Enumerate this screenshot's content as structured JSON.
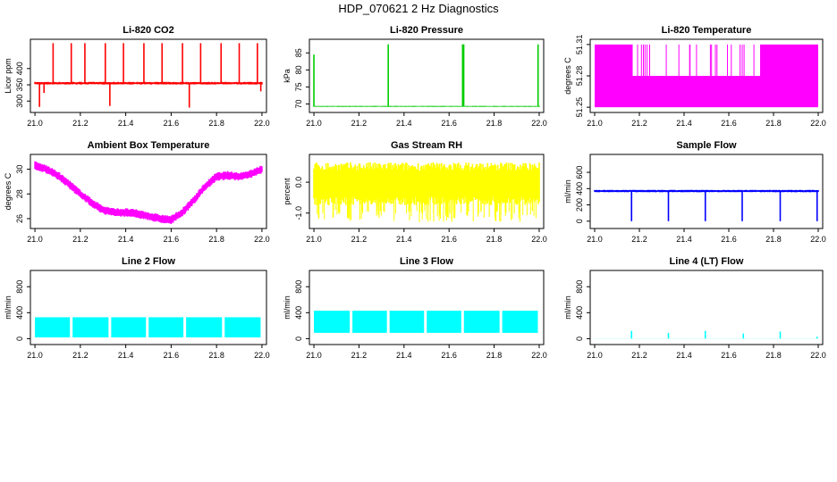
{
  "page": {
    "title": "HDP_070621  2 Hz Diagnostics"
  },
  "chart_data": [
    {
      "type": "line",
      "title": "Li-820 CO2",
      "ylabel": "Licor ppm",
      "xlabel": "",
      "color": "#ff0000",
      "xlim": [
        20.98,
        22.02
      ],
      "ylim": [
        265,
        490
      ],
      "xticks": [
        "21.0",
        "21.2",
        "21.4",
        "21.6",
        "21.8",
        "22.0"
      ],
      "yticks": [
        "300",
        "350",
        "400"
      ],
      "series": [
        {
          "style": "band",
          "x": [
            21.0,
            21.1,
            21.2,
            21.3,
            21.4,
            21.5,
            21.6,
            21.7,
            21.8,
            21.9,
            22.0
          ],
          "center": [
            355,
            355,
            355,
            355,
            355,
            355,
            355,
            355,
            355,
            355,
            355
          ],
          "half_width": [
            4,
            4,
            4,
            4,
            4,
            4,
            4,
            4,
            4,
            4,
            4
          ]
        }
      ],
      "spikes": [
        {
          "x": 21.02,
          "y": 282
        },
        {
          "x": 21.04,
          "y": 325
        },
        {
          "x": 21.08,
          "y": 478
        },
        {
          "x": 21.16,
          "y": 478
        },
        {
          "x": 21.22,
          "y": 478
        },
        {
          "x": 21.31,
          "y": 478
        },
        {
          "x": 21.33,
          "y": 285
        },
        {
          "x": 21.39,
          "y": 478
        },
        {
          "x": 21.48,
          "y": 478
        },
        {
          "x": 21.56,
          "y": 478
        },
        {
          "x": 21.65,
          "y": 478
        },
        {
          "x": 21.68,
          "y": 280
        },
        {
          "x": 21.73,
          "y": 478
        },
        {
          "x": 21.82,
          "y": 478
        },
        {
          "x": 21.9,
          "y": 478
        },
        {
          "x": 21.98,
          "y": 478
        },
        {
          "x": 21.995,
          "y": 330
        }
      ]
    },
    {
      "type": "line",
      "title": "Li-820 Pressure",
      "ylabel": "kPa",
      "xlabel": "",
      "color": "#00cc00",
      "xlim": [
        20.98,
        22.02
      ],
      "ylim": [
        67.5,
        89
      ],
      "xticks": [
        "21.0",
        "21.2",
        "21.4",
        "21.6",
        "21.8",
        "22.0"
      ],
      "yticks": [
        "70",
        "75",
        "80",
        "85"
      ],
      "series": [
        {
          "style": "band",
          "x": [
            21.0,
            21.2,
            21.4,
            21.6,
            21.8,
            22.0
          ],
          "center": [
            69.3,
            69.3,
            69.3,
            69.3,
            69.3,
            69.3
          ],
          "half_width": [
            0.15,
            0.15,
            0.15,
            0.15,
            0.15,
            0.15
          ]
        }
      ],
      "spikes": [
        {
          "x": 21.0,
          "y": 84.5
        },
        {
          "x": 21.33,
          "y": 87.5
        },
        {
          "x": 21.66,
          "y": 87.5
        },
        {
          "x": 21.665,
          "y": 87.5
        },
        {
          "x": 21.995,
          "y": 87.5
        }
      ]
    },
    {
      "type": "line",
      "title": "Li-820 Temperature",
      "ylabel": "degrees C",
      "xlabel": "",
      "color": "#ff00ff",
      "xlim": [
        20.98,
        22.02
      ],
      "ylim": [
        51.245,
        51.315
      ],
      "xticks": [
        "21.0",
        "21.2",
        "21.4",
        "21.6",
        "21.8",
        "22.0"
      ],
      "yticks": [
        "51.25",
        "51.28",
        "51.31"
      ],
      "series": [
        {
          "style": "quantized",
          "levels": [
            51.25,
            51.28,
            51.31
          ],
          "segments": [
            {
              "x0": 21.0,
              "x1": 21.17,
              "lo": 51.25,
              "hi": 51.31
            },
            {
              "x0": 21.17,
              "x1": 21.74,
              "lo": 51.25,
              "hi": 51.28
            },
            {
              "x0": 21.74,
              "x1": 21.82,
              "lo": 51.25,
              "hi": 51.31
            },
            {
              "x0": 21.82,
              "x1": 22.0,
              "lo": 51.25,
              "hi": 51.31
            }
          ]
        }
      ]
    },
    {
      "type": "line",
      "title": "Ambient Box Temperature",
      "ylabel": "degrees C",
      "xlabel": "",
      "color": "#ff00ff",
      "xlim": [
        20.98,
        22.02
      ],
      "ylim": [
        25.2,
        31.2
      ],
      "xticks": [
        "21.0",
        "21.2",
        "21.4",
        "21.6",
        "21.8",
        "22.0"
      ],
      "yticks": [
        "26",
        "28",
        "30"
      ],
      "series": [
        {
          "style": "band",
          "x": [
            21.0,
            21.05,
            21.1,
            21.15,
            21.2,
            21.25,
            21.3,
            21.35,
            21.4,
            21.45,
            21.5,
            21.55,
            21.6,
            21.65,
            21.7,
            21.75,
            21.8,
            21.85,
            21.9,
            21.95,
            22.0
          ],
          "center": [
            30.3,
            30.0,
            29.5,
            28.8,
            28.0,
            27.3,
            26.7,
            26.5,
            26.5,
            26.4,
            26.2,
            26.0,
            25.9,
            26.5,
            27.5,
            28.6,
            29.4,
            29.5,
            29.4,
            29.6,
            30.0
          ],
          "half_width": [
            0.35,
            0.35,
            0.35,
            0.35,
            0.35,
            0.35,
            0.35,
            0.35,
            0.35,
            0.35,
            0.35,
            0.35,
            0.35,
            0.35,
            0.35,
            0.35,
            0.35,
            0.35,
            0.35,
            0.35,
            0.35
          ]
        }
      ]
    },
    {
      "type": "line",
      "title": "Gas Stream RH",
      "ylabel": "percent",
      "xlabel": "",
      "color": "#ffff00",
      "xlim": [
        20.98,
        22.02
      ],
      "ylim": [
        -1.5,
        0.9
      ],
      "xticks": [
        "21.0",
        "21.2",
        "21.4",
        "21.6",
        "21.8",
        "22.0"
      ],
      "yticks": [
        "-1.0",
        "0.0"
      ],
      "series": [
        {
          "style": "band",
          "x": [
            21.0,
            21.2,
            21.4,
            21.6,
            21.8,
            22.0
          ],
          "center": [
            -0.05,
            -0.05,
            -0.05,
            -0.05,
            -0.05,
            -0.05
          ],
          "half_width": [
            0.7,
            0.7,
            0.7,
            0.7,
            0.7,
            0.7
          ]
        }
      ]
    },
    {
      "type": "line",
      "title": "Sample Flow",
      "ylabel": "ml/min",
      "xlabel": "",
      "color": "#0000ff",
      "xlim": [
        20.98,
        22.02
      ],
      "ylim": [
        -90,
        820
      ],
      "xticks": [
        "21.0",
        "21.2",
        "21.4",
        "21.6",
        "21.8",
        "22.0"
      ],
      "yticks": [
        "0",
        "200",
        "400",
        "600"
      ],
      "series": [
        {
          "style": "band",
          "x": [
            21.0,
            21.2,
            21.4,
            21.6,
            21.8,
            22.0
          ],
          "center": [
            370,
            370,
            370,
            370,
            370,
            370
          ],
          "half_width": [
            15,
            15,
            15,
            15,
            15,
            15
          ]
        }
      ],
      "spikes": [
        {
          "x": 21.165,
          "y": 0
        },
        {
          "x": 21.33,
          "y": 0
        },
        {
          "x": 21.495,
          "y": 0
        },
        {
          "x": 21.66,
          "y": 0
        },
        {
          "x": 21.83,
          "y": 0
        },
        {
          "x": 21.995,
          "y": 0
        }
      ]
    },
    {
      "type": "line",
      "title": "Line 2 Flow",
      "ylabel": "ml/min",
      "xlabel": "",
      "color": "#00ffff",
      "xlim": [
        20.98,
        22.02
      ],
      "ylim": [
        -90,
        1050
      ],
      "xticks": [
        "21.0",
        "21.2",
        "21.4",
        "21.6",
        "21.8",
        "22.0"
      ],
      "yticks": [
        "0",
        "400",
        "800"
      ],
      "series": [
        {
          "style": "blocks",
          "lo": 20,
          "hi": 330,
          "gaps": [
            21.16,
            21.33,
            21.495,
            21.66,
            21.83
          ]
        }
      ]
    },
    {
      "type": "line",
      "title": "Line 3 Flow",
      "ylabel": "ml/min",
      "xlabel": "",
      "color": "#00ffff",
      "xlim": [
        20.98,
        22.02
      ],
      "ylim": [
        -90,
        1050
      ],
      "xticks": [
        "21.0",
        "21.2",
        "21.4",
        "21.6",
        "21.8",
        "22.0"
      ],
      "yticks": [
        "0",
        "400",
        "800"
      ],
      "series": [
        {
          "style": "blocks",
          "lo": 90,
          "hi": 430,
          "gaps": [
            21.165,
            21.33,
            21.495,
            21.66,
            21.83
          ]
        }
      ]
    },
    {
      "type": "line",
      "title": "Line 4 (LT) Flow",
      "ylabel": "ml/min",
      "xlabel": "",
      "color": "#00ffff",
      "xlim": [
        20.98,
        22.02
      ],
      "ylim": [
        -90,
        1050
      ],
      "xticks": [
        "21.0",
        "21.2",
        "21.4",
        "21.6",
        "21.8",
        "22.0"
      ],
      "yticks": [
        "0",
        "400",
        "800"
      ],
      "series": [
        {
          "style": "band",
          "x": [
            21.0,
            22.0
          ],
          "center": [
            2,
            2
          ],
          "half_width": [
            2,
            2
          ]
        }
      ],
      "spikes": [
        {
          "x": 21.165,
          "y": 120
        },
        {
          "x": 21.33,
          "y": 90
        },
        {
          "x": 21.495,
          "y": 120
        },
        {
          "x": 21.665,
          "y": 80
        },
        {
          "x": 21.83,
          "y": 110
        },
        {
          "x": 21.995,
          "y": 30
        }
      ]
    }
  ]
}
